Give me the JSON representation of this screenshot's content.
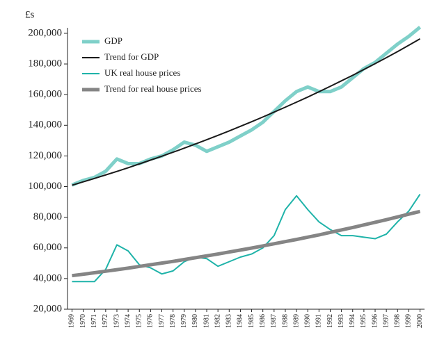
{
  "chart_data": {
    "type": "line",
    "ylabel": "£s",
    "x": [
      1969,
      1970,
      1971,
      1972,
      1973,
      1974,
      1975,
      1976,
      1977,
      1978,
      1979,
      1980,
      1981,
      1982,
      1983,
      1984,
      1985,
      1986,
      1987,
      1988,
      1989,
      1990,
      1991,
      1992,
      1993,
      1994,
      1995,
      1996,
      1997,
      1998,
      1999,
      2000
    ],
    "series": [
      {
        "name": "GDP",
        "color": "#7fd0c9",
        "values": [
          101000,
          104000,
          106000,
          110000,
          118000,
          115000,
          115000,
          118000,
          120000,
          124000,
          129000,
          127000,
          123000,
          126000,
          129000,
          133000,
          137000,
          142000,
          149000,
          156000,
          162000,
          165000,
          162000,
          162000,
          165000,
          171000,
          177000,
          181000,
          187000,
          193000,
          198000,
          204000
        ]
      },
      {
        "name": "Trend for GDP",
        "color": "#1a1a1a",
        "values": [
          100900,
          103100,
          105300,
          107600,
          109900,
          112300,
          114800,
          117300,
          119800,
          122400,
          125100,
          127800,
          130600,
          133400,
          136300,
          139300,
          142300,
          145400,
          148600,
          151800,
          155100,
          158400,
          161900,
          165400,
          169000,
          172600,
          176400,
          180200,
          184100,
          188100,
          192200,
          196400
        ]
      },
      {
        "name": "UK real house prices",
        "color": "#1fb3a9",
        "values": [
          38000,
          38000,
          38000,
          46000,
          62000,
          58000,
          49000,
          47000,
          43000,
          45000,
          51000,
          54000,
          53000,
          48000,
          51000,
          54000,
          56000,
          60000,
          68000,
          85000,
          94000,
          85000,
          77000,
          72000,
          68000,
          68000,
          67000,
          66000,
          69000,
          77000,
          84000,
          95000
        ]
      },
      {
        "name": "Trend for real house prices",
        "color": "#858585",
        "values": [
          41900,
          42800,
          43800,
          44800,
          45800,
          46800,
          47900,
          49000,
          50100,
          51200,
          52400,
          53600,
          54800,
          56000,
          57300,
          58600,
          59900,
          61300,
          62700,
          64100,
          65500,
          67000,
          68500,
          70100,
          71700,
          73300,
          75000,
          76700,
          78400,
          80200,
          82000,
          83800
        ]
      }
    ],
    "xlim": [
      1968.6,
      2000.4
    ],
    "xticks": [
      1969,
      1970,
      1971,
      1972,
      1973,
      1974,
      1975,
      1976,
      1977,
      1978,
      1979,
      1980,
      1981,
      1982,
      1983,
      1984,
      1985,
      1986,
      1987,
      1988,
      1989,
      1990,
      1991,
      1992,
      1993,
      1994,
      1995,
      1996,
      1997,
      1998,
      1999,
      2000
    ],
    "ylim": [
      20000,
      203600
    ],
    "yticks": [
      {
        "value": 20000,
        "label": "20,000"
      },
      {
        "value": 40000,
        "label": "40,000"
      },
      {
        "value": 60000,
        "label": "60,000"
      },
      {
        "value": 80000,
        "label": "80,000"
      },
      {
        "value": 100000,
        "label": "100,000"
      },
      {
        "value": 120000,
        "label": "120,000"
      },
      {
        "value": 140000,
        "label": "140,000"
      },
      {
        "value": 160000,
        "label": "160,000"
      },
      {
        "value": 180000,
        "label": "180,000"
      },
      {
        "value": 200000,
        "label": "200,000"
      }
    ],
    "grid": false,
    "legend": "top-left"
  }
}
